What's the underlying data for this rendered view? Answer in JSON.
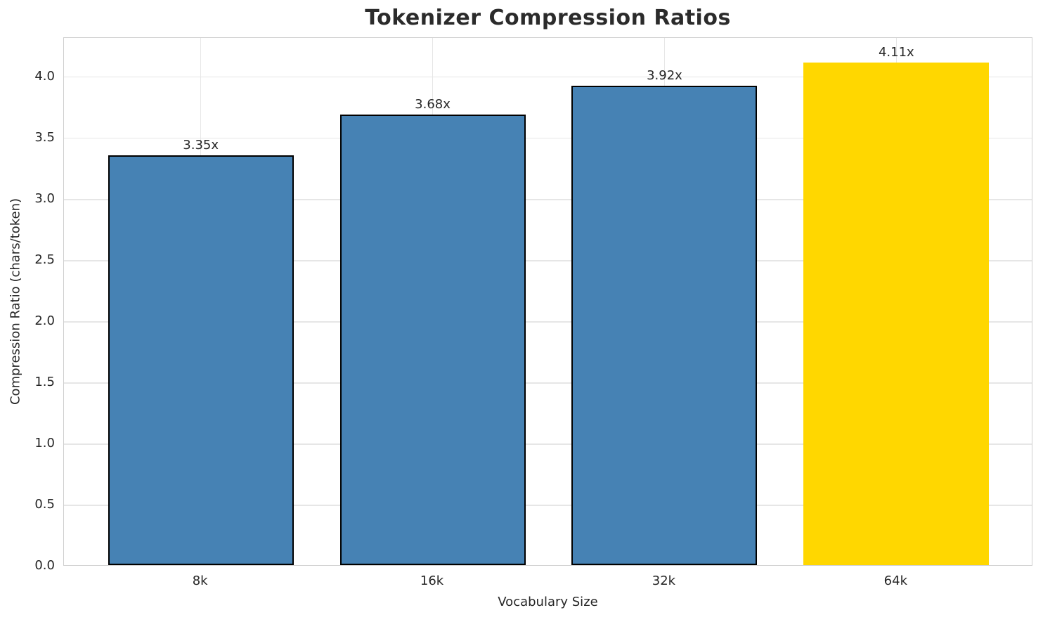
{
  "chart_data": {
    "type": "bar",
    "title": "Tokenizer Compression Ratios",
    "xlabel": "Vocabulary Size",
    "ylabel": "Compression Ratio (chars/token)",
    "categories": [
      "8k",
      "16k",
      "32k",
      "64k"
    ],
    "values": [
      3.35,
      3.68,
      3.92,
      4.11
    ],
    "bar_labels": [
      "3.35x",
      "3.68x",
      "3.92x",
      "4.11x"
    ],
    "ylim": [
      0,
      4.32
    ],
    "yticks": [
      0.0,
      0.5,
      1.0,
      1.5,
      2.0,
      2.5,
      3.0,
      3.5,
      4.0
    ],
    "ytick_labels": [
      "0.0",
      "0.5",
      "1.0",
      "1.5",
      "2.0",
      "2.5",
      "3.0",
      "3.5",
      "4.0"
    ],
    "grid": true,
    "legend": "none",
    "bar_colors": [
      "#4682b4",
      "#4682b4",
      "#4682b4",
      "#ffd700"
    ],
    "bar_edge_colors": [
      "#000000",
      "#000000",
      "#000000",
      "none"
    ],
    "highlight_index": 3
  },
  "colors": {
    "bar_blue": "#4682b4",
    "bar_gold": "#ffd700",
    "bar_edge": "#000000",
    "grid": "#e6e6e6",
    "spine": "#cfcfcf",
    "text": "#262626",
    "title": "#2b2b2b",
    "background": "#ffffff"
  }
}
